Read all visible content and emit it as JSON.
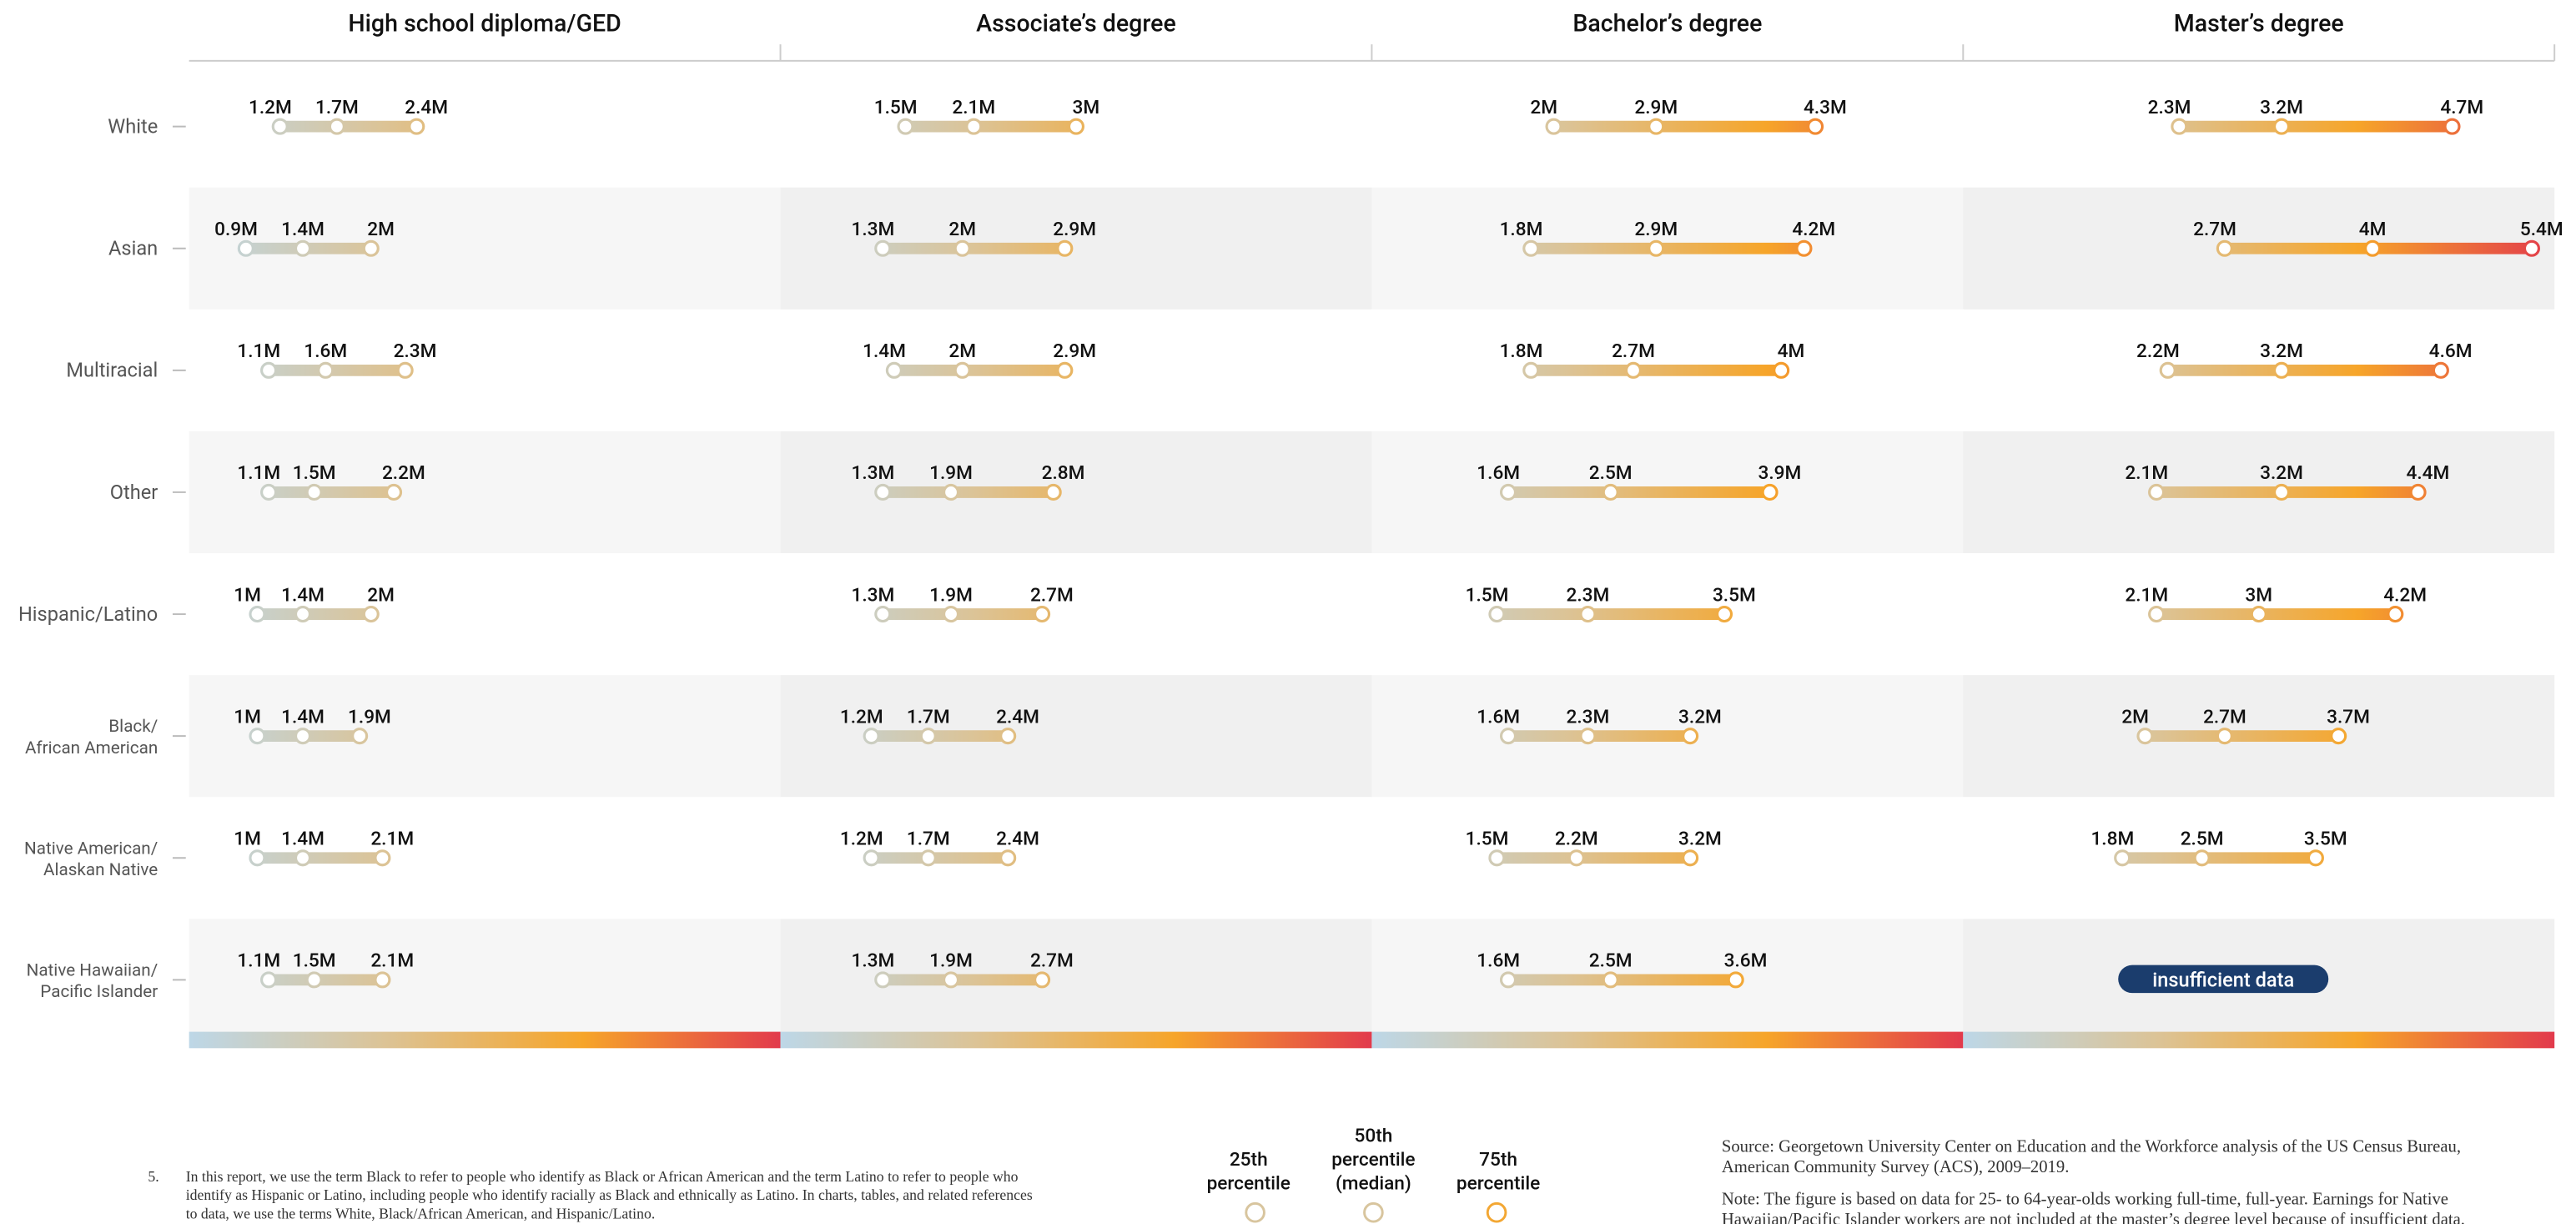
{
  "chart_data": {
    "type": "dot-range",
    "xlim": [
      0.4,
      5.6
    ],
    "color_scale": [
      "#bdd7e7",
      "#dcc395",
      "#f6a52a",
      "#e23a4c"
    ],
    "categories": [
      [
        "White"
      ],
      [
        "Asian"
      ],
      [
        "Multiracial"
      ],
      [
        "Other"
      ],
      [
        "Hispanic/Latino"
      ],
      [
        "Black/",
        "African American"
      ],
      [
        "Native American/",
        "Alaskan Native"
      ],
      [
        "Native Hawaiian/",
        "Pacific Islander"
      ]
    ],
    "panels": [
      {
        "title": "High school diploma/GED",
        "values": [
          [
            1.2,
            1.7,
            2.4
          ],
          [
            0.9,
            1.4,
            2
          ],
          [
            1.1,
            1.6,
            2.3
          ],
          [
            1.1,
            1.5,
            2.2
          ],
          [
            1,
            1.4,
            2
          ],
          [
            1,
            1.4,
            1.9
          ],
          [
            1,
            1.4,
            2.1
          ],
          [
            1.1,
            1.5,
            2.1
          ]
        ],
        "value_labels": [
          [
            "1.2M",
            "1.7M",
            "2.4M"
          ],
          [
            "0.9M",
            "1.4M",
            "2M"
          ],
          [
            "1.1M",
            "1.6M",
            "2.3M"
          ],
          [
            "1.1M",
            "1.5M",
            "2.2M"
          ],
          [
            "1M",
            "1.4M",
            "2M"
          ],
          [
            "1M",
            "1.4M",
            "1.9M"
          ],
          [
            "1M",
            "1.4M",
            "2.1M"
          ],
          [
            "1.1M",
            "1.5M",
            "2.1M"
          ]
        ]
      },
      {
        "title": "Associate’s degree",
        "values": [
          [
            1.5,
            2.1,
            3
          ],
          [
            1.3,
            2,
            2.9
          ],
          [
            1.4,
            2,
            2.9
          ],
          [
            1.3,
            1.9,
            2.8
          ],
          [
            1.3,
            1.9,
            2.7
          ],
          [
            1.2,
            1.7,
            2.4
          ],
          [
            1.2,
            1.7,
            2.4
          ],
          [
            1.3,
            1.9,
            2.7
          ]
        ],
        "value_labels": [
          [
            "1.5M",
            "2.1M",
            "3M"
          ],
          [
            "1.3M",
            "2M",
            "2.9M"
          ],
          [
            "1.4M",
            "2M",
            "2.9M"
          ],
          [
            "1.3M",
            "1.9M",
            "2.8M"
          ],
          [
            "1.3M",
            "1.9M",
            "2.7M"
          ],
          [
            "1.2M",
            "1.7M",
            "2.4M"
          ],
          [
            "1.2M",
            "1.7M",
            "2.4M"
          ],
          [
            "1.3M",
            "1.9M",
            "2.7M"
          ]
        ]
      },
      {
        "title": "Bachelor’s degree",
        "values": [
          [
            2,
            2.9,
            4.3
          ],
          [
            1.8,
            2.9,
            4.2
          ],
          [
            1.8,
            2.7,
            4
          ],
          [
            1.6,
            2.5,
            3.9
          ],
          [
            1.5,
            2.3,
            3.5
          ],
          [
            1.6,
            2.3,
            3.2
          ],
          [
            1.5,
            2.2,
            3.2
          ],
          [
            1.6,
            2.5,
            3.6
          ]
        ],
        "value_labels": [
          [
            "2M",
            "2.9M",
            "4.3M"
          ],
          [
            "1.8M",
            "2.9M",
            "4.2M"
          ],
          [
            "1.8M",
            "2.7M",
            "4M"
          ],
          [
            "1.6M",
            "2.5M",
            "3.9M"
          ],
          [
            "1.5M",
            "2.3M",
            "3.5M"
          ],
          [
            "1.6M",
            "2.3M",
            "3.2M"
          ],
          [
            "1.5M",
            "2.2M",
            "3.2M"
          ],
          [
            "1.6M",
            "2.5M",
            "3.6M"
          ]
        ]
      },
      {
        "title": "Master’s degree",
        "values": [
          [
            2.3,
            3.2,
            4.7
          ],
          [
            2.7,
            4,
            5.4
          ],
          [
            2.2,
            3.2,
            4.6
          ],
          [
            2.1,
            3.2,
            4.4
          ],
          [
            2.1,
            3,
            4.2
          ],
          [
            2,
            2.7,
            3.7
          ],
          [
            1.8,
            2.5,
            3.5
          ],
          null
        ],
        "value_labels": [
          [
            "2.3M",
            "3.2M",
            "4.7M"
          ],
          [
            "2.7M",
            "4M",
            "5.4M"
          ],
          [
            "2.2M",
            "3.2M",
            "4.6M"
          ],
          [
            "2.1M",
            "3.2M",
            "4.4M"
          ],
          [
            "2.1M",
            "3M",
            "4.2M"
          ],
          [
            "2M",
            "2.7M",
            "3.7M"
          ],
          [
            "1.8M",
            "2.5M",
            "3.5M"
          ],
          null
        ],
        "annotation": "insufficient data"
      }
    ],
    "legend": {
      "labels": [
        [
          "25th",
          "percentile"
        ],
        [
          "50th",
          "percentile",
          "(median)"
        ],
        [
          "75th",
          "percentile"
        ]
      ],
      "colors": [
        "#d8c59e",
        "#f3a733"
      ]
    }
  },
  "footnote": {
    "marker": "5.",
    "lines": [
      "In this report, we use the term Black to refer to people who identify as Black or African American and the term Latino to refer to people who",
      "identify as Hispanic or Latino, including people who identify racially as Black and ethnically as Latino. In charts, tables, and related references",
      "to data, we use the terms White, Black/African American, and Hispanic/Latino."
    ]
  },
  "source": {
    "lines": [
      "Source: Georgetown University Center on Education and the Workforce analysis of the US Census Bureau,",
      "American Community Survey (ACS), 2009–2019."
    ]
  },
  "note": {
    "lines": [
      "Note: The figure is based on data for 25- to 64-year-olds working full-time, full-year. Earnings for Native",
      "Hawaiian/Pacific Islander workers are not included at the master’s degree level because of insufficient data."
    ]
  }
}
